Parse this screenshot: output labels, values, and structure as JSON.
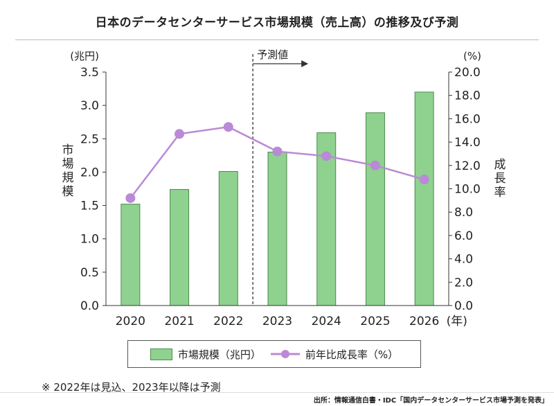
{
  "header": {
    "title": "日本のデータセンターサービス市場規模（売上高）の推移及び予測"
  },
  "chart_data": {
    "type": "bar",
    "categories": [
      "2020",
      "2021",
      "2022",
      "2023",
      "2024",
      "2025",
      "2026"
    ],
    "x_unit": "(年)",
    "series": [
      {
        "name": "市場規模（兆円）",
        "type": "bar",
        "axis": "left",
        "values": [
          1.52,
          1.74,
          2.01,
          2.3,
          2.59,
          2.89,
          3.2
        ],
        "color": "#8fd18f",
        "border_color": "#4a8a4a"
      },
      {
        "name": "前年比成長率（%）",
        "type": "line",
        "axis": "right",
        "values": [
          9.2,
          14.7,
          15.3,
          13.2,
          12.8,
          12.0,
          10.8
        ],
        "color": "#b98ad6",
        "marker_color": "#b98ad6"
      }
    ],
    "left_axis": {
      "label": "市場規模",
      "unit": "(兆円)",
      "ylim": [
        0,
        3.5
      ],
      "ticks": [
        "0.0",
        "0.5",
        "1.0",
        "1.5",
        "2.0",
        "2.5",
        "3.0",
        "3.5"
      ]
    },
    "right_axis": {
      "label": "成長率",
      "unit": "(%)",
      "ylim": [
        0,
        20
      ],
      "ticks": [
        "0.0",
        "2.0",
        "4.0",
        "6.0",
        "8.0",
        "10.0",
        "12.0",
        "14.0",
        "16.0",
        "18.0",
        "20.0"
      ]
    },
    "forecast": {
      "label": "予測値",
      "start_category": "2023"
    },
    "grid": "none",
    "legend_position": "bottom"
  },
  "legend": {
    "bar_label": "市場規模（兆円）",
    "line_label": "前年比成長率（%）"
  },
  "footnote": "※ 2022年は見込、2023年以降は予測",
  "source": "出所：情報通信白書・IDC「国内データセンターサービス市場予測を発表」"
}
